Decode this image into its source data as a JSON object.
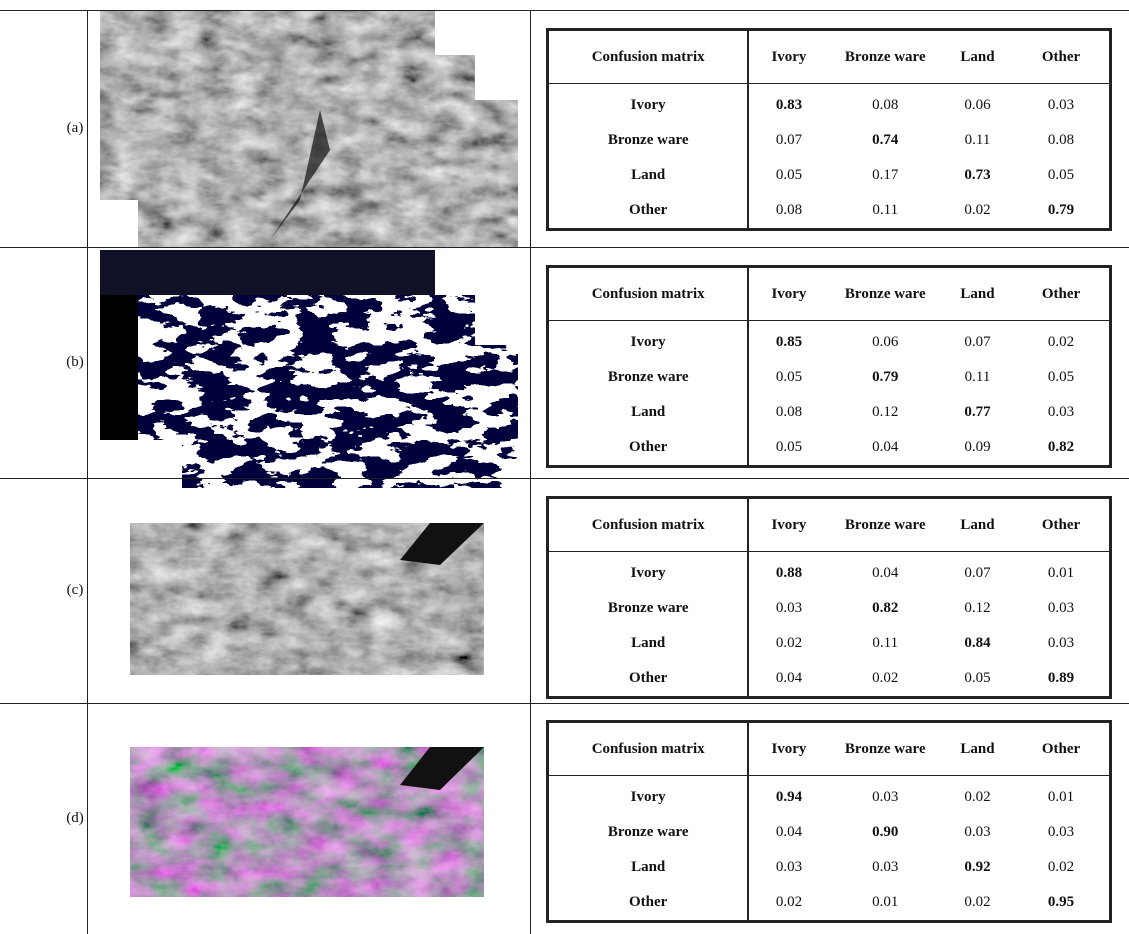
{
  "figure_rows": [
    {
      "label": "(a)",
      "matrix": {
        "header": [
          "Confusion matrix",
          "Ivory",
          "Bronze ware",
          "Land",
          "Other"
        ],
        "rows": [
          [
            "Ivory",
            "0.83",
            "0.08",
            "0.06",
            "0.03"
          ],
          [
            "Bronze ware",
            "0.07",
            "0.74",
            "0.11",
            "0.08"
          ],
          [
            "Land",
            "0.05",
            "0.17",
            "0.73",
            "0.05"
          ],
          [
            "Other",
            "0.08",
            "0.11",
            "0.02",
            "0.79"
          ]
        ]
      }
    },
    {
      "label": "(b)",
      "matrix": {
        "header": [
          "Confusion matrix",
          "Ivory",
          "Bronze ware",
          "Land",
          "Other"
        ],
        "rows": [
          [
            "Ivory",
            "0.85",
            "0.06",
            "0.07",
            "0.02"
          ],
          [
            "Bronze ware",
            "0.05",
            "0.79",
            "0.11",
            "0.05"
          ],
          [
            "Land",
            "0.08",
            "0.12",
            "0.77",
            "0.03"
          ],
          [
            "Other",
            "0.05",
            "0.04",
            "0.09",
            "0.82"
          ]
        ]
      }
    },
    {
      "label": "(c)",
      "matrix": {
        "header": [
          "Confusion matrix",
          "Ivory",
          "Bronze ware",
          "Land",
          "Other"
        ],
        "rows": [
          [
            "Ivory",
            "0.88",
            "0.04",
            "0.07",
            "0.01"
          ],
          [
            "Bronze ware",
            "0.03",
            "0.82",
            "0.12",
            "0.03"
          ],
          [
            "Land",
            "0.02",
            "0.11",
            "0.84",
            "0.03"
          ],
          [
            "Other",
            "0.04",
            "0.02",
            "0.05",
            "0.89"
          ]
        ]
      }
    },
    {
      "label": "(d)",
      "matrix": {
        "header": [
          "Confusion matrix",
          "Ivory",
          "Bronze ware",
          "Land",
          "Other"
        ],
        "rows": [
          [
            "Ivory",
            "0.94",
            "0.03",
            "0.02",
            "0.01"
          ],
          [
            "Bronze ware",
            "0.04",
            "0.90",
            "0.03",
            "0.03"
          ],
          [
            "Land",
            "0.03",
            "0.03",
            "0.92",
            "0.02"
          ],
          [
            "Other",
            "0.02",
            "0.01",
            "0.02",
            "0.95"
          ]
        ]
      }
    }
  ]
}
